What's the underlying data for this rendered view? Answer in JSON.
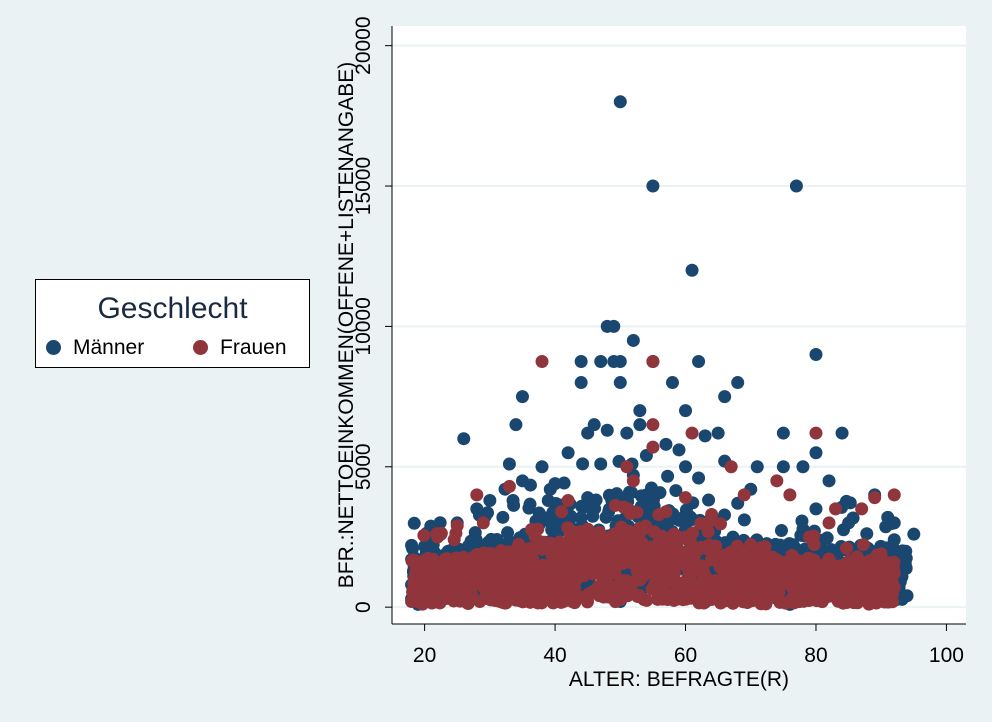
{
  "chart_data": {
    "type": "scatter",
    "title": "",
    "xlabel": "ALTER: BEFRAGTE(R)",
    "ylabel": "BFR.:NETTOEINKOMMEN(OFFENE+LISTENANGABE)",
    "xlim": [
      15,
      103
    ],
    "ylim": [
      -600,
      20700
    ],
    "xticks": [
      20,
      40,
      60,
      80,
      100
    ],
    "yticks": [
      0,
      5000,
      10000,
      15000,
      20000
    ],
    "xtick_labels": [
      "20",
      "40",
      "60",
      "80",
      "100"
    ],
    "ytick_labels": [
      "0",
      "5000",
      "10000",
      "15000",
      "20000"
    ],
    "grid": true,
    "legend": {
      "title": "Geschlecht",
      "position": "left-middle",
      "entries": [
        "Männer",
        "Frauen"
      ]
    },
    "colors": {
      "Männer": "#1a476f",
      "Frauen": "#90353b",
      "background": "#eaf2f3",
      "plot_area": "#ffffff"
    },
    "series": [
      {
        "name": "Männer",
        "points": [
          [
            50,
            18000
          ],
          [
            55,
            15000
          ],
          [
            77,
            15000
          ],
          [
            61,
            12000
          ],
          [
            48,
            10000
          ],
          [
            49,
            10000
          ],
          [
            52,
            9500
          ],
          [
            80,
            9000
          ],
          [
            44,
            8750
          ],
          [
            47,
            8750
          ],
          [
            49,
            8750
          ],
          [
            50,
            8750
          ],
          [
            55,
            8750
          ],
          [
            62,
            8750
          ],
          [
            44,
            8000
          ],
          [
            50,
            8000
          ],
          [
            58,
            8000
          ],
          [
            68,
            8000
          ],
          [
            35,
            7500
          ],
          [
            66,
            7500
          ],
          [
            53,
            7000
          ],
          [
            60,
            7000
          ],
          [
            34,
            6500
          ],
          [
            46,
            6500
          ],
          [
            53,
            6500
          ],
          [
            26,
            6000
          ],
          [
            45,
            6200
          ],
          [
            48,
            6300
          ],
          [
            51,
            6200
          ],
          [
            57,
            5800
          ],
          [
            63,
            6100
          ],
          [
            65,
            6200
          ],
          [
            75,
            6200
          ],
          [
            84,
            6200
          ],
          [
            42,
            5500
          ],
          [
            54,
            5400
          ],
          [
            59,
            5600
          ],
          [
            66,
            5200
          ],
          [
            80,
            5500
          ],
          [
            33,
            5100
          ],
          [
            38,
            5000
          ],
          [
            47,
            5100
          ],
          [
            60,
            5000
          ],
          [
            71,
            5000
          ],
          [
            75,
            5000
          ],
          [
            78,
            5000
          ],
          [
            35,
            4500
          ],
          [
            40,
            4400
          ],
          [
            52,
            4700
          ],
          [
            62,
            4600
          ],
          [
            70,
            4200
          ],
          [
            82,
            4500
          ],
          [
            89,
            4000
          ],
          [
            30,
            3800
          ],
          [
            45,
            3900
          ],
          [
            55,
            3600
          ],
          [
            68,
            3700
          ],
          [
            80,
            3500
          ],
          [
            85,
            3000
          ],
          [
            91,
            3200
          ],
          [
            18,
            2200
          ],
          [
            18,
            1700
          ],
          [
            19,
            1300
          ],
          [
            18,
            800
          ],
          [
            18,
            300
          ],
          [
            19,
            100
          ],
          [
            22,
            2600
          ],
          [
            25,
            3000
          ],
          [
            28,
            3500
          ],
          [
            32,
            3200
          ],
          [
            95,
            2600
          ],
          [
            92,
            2400
          ],
          [
            92,
            3000
          ],
          [
            93,
            1700
          ],
          [
            93,
            1300
          ],
          [
            90,
            1500
          ],
          [
            88,
            2000
          ],
          [
            86,
            1800
          ],
          [
            76,
            100
          ],
          [
            50,
            200
          ],
          [
            40,
            300
          ]
        ]
      },
      {
        "name": "Frauen",
        "points": [
          [
            38,
            8750
          ],
          [
            55,
            8750
          ],
          [
            55,
            6500
          ],
          [
            61,
            6200
          ],
          [
            80,
            6200
          ],
          [
            55,
            5700
          ],
          [
            51,
            5000
          ],
          [
            67,
            5000
          ],
          [
            74,
            4500
          ],
          [
            76,
            4000
          ],
          [
            69,
            4000
          ],
          [
            28,
            4000
          ],
          [
            33,
            4300
          ],
          [
            52,
            4500
          ],
          [
            42,
            3800
          ],
          [
            60,
            3900
          ],
          [
            89,
            3900
          ],
          [
            92,
            4000
          ],
          [
            87,
            3500
          ],
          [
            83,
            3500
          ],
          [
            82,
            3000
          ],
          [
            22,
            2500
          ],
          [
            25,
            2900
          ],
          [
            29,
            3000
          ],
          [
            41,
            3400
          ],
          [
            57,
            3400
          ],
          [
            64,
            3300
          ],
          [
            79,
            2500
          ],
          [
            90,
            1900
          ],
          [
            91,
            1200
          ],
          [
            92,
            1200
          ],
          [
            92,
            700
          ],
          [
            86,
            500
          ],
          [
            88,
            600
          ],
          [
            84,
            800
          ],
          [
            19,
            500
          ],
          [
            18,
            200
          ],
          [
            20,
            900
          ]
        ]
      }
    ]
  }
}
